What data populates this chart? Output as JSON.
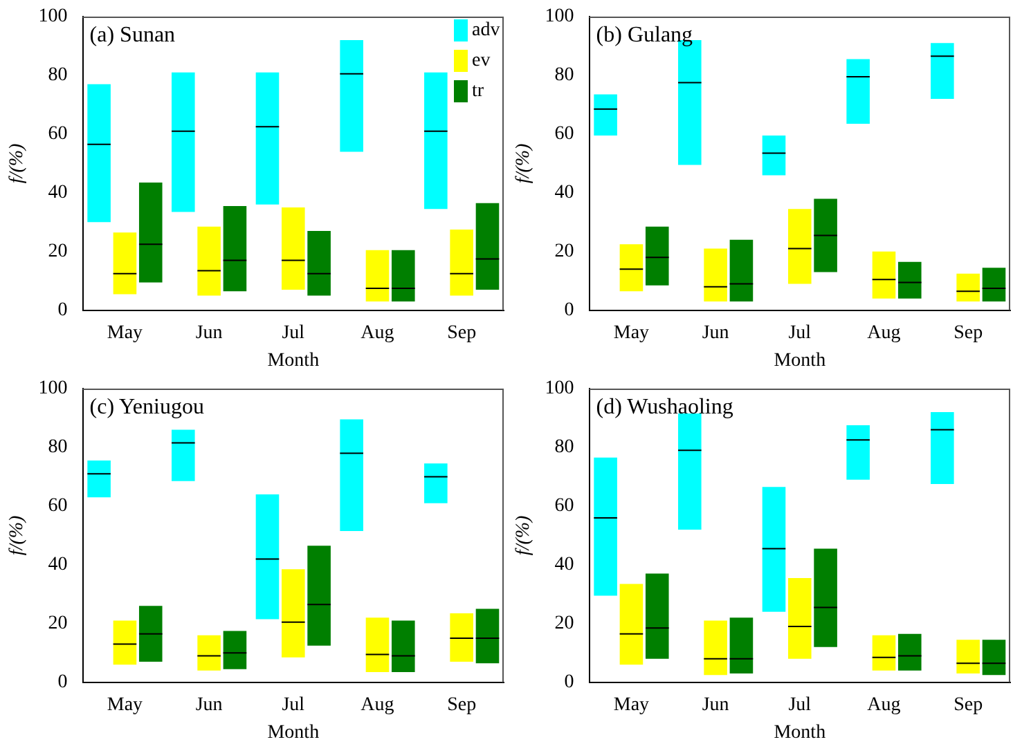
{
  "chart_data": [
    {
      "type": "box",
      "title": "(a) Sunan",
      "xlabel": "Month",
      "ylabel": "f/(%)",
      "categories": [
        "May",
        "Jun",
        "Jul",
        "Aug",
        "Sep"
      ],
      "ylim": [
        0,
        100
      ],
      "yticks": [
        0,
        20,
        40,
        60,
        80,
        100
      ],
      "legend": "top right",
      "series": [
        {
          "name": "adv",
          "color": "#00ffff",
          "boxes": [
            {
              "low": 30,
              "q1": 30,
              "median": 56.5,
              "q3": 77,
              "high": 77
            },
            {
              "low": 33.5,
              "q1": 33.5,
              "median": 61,
              "q3": 81,
              "high": 81
            },
            {
              "low": 36,
              "q1": 36,
              "median": 62.5,
              "q3": 81,
              "high": 81
            },
            {
              "low": 54,
              "q1": 54,
              "median": 80.5,
              "q3": 92,
              "high": 92
            },
            {
              "low": 34.5,
              "q1": 34.5,
              "median": 61,
              "q3": 81,
              "high": 81
            }
          ]
        },
        {
          "name": "ev",
          "color": "#ffff00",
          "boxes": [
            {
              "low": 5.5,
              "q1": 5.5,
              "median": 12.5,
              "q3": 26.5,
              "high": 26.5
            },
            {
              "low": 5,
              "q1": 5,
              "median": 13.5,
              "q3": 28.5,
              "high": 28.5
            },
            {
              "low": 7,
              "q1": 7,
              "median": 17,
              "q3": 35,
              "high": 35
            },
            {
              "low": 3,
              "q1": 3,
              "median": 7.5,
              "q3": 20.5,
              "high": 20.5
            },
            {
              "low": 5,
              "q1": 5,
              "median": 12.5,
              "q3": 27.5,
              "high": 27.5
            }
          ]
        },
        {
          "name": "tr",
          "color": "#007f00",
          "boxes": [
            {
              "low": 9.5,
              "q1": 9.5,
              "median": 22.5,
              "q3": 43.5,
              "high": 43.5
            },
            {
              "low": 6.5,
              "q1": 6.5,
              "median": 17,
              "q3": 35.5,
              "high": 35.5
            },
            {
              "low": 5,
              "q1": 5,
              "median": 12.5,
              "q3": 27,
              "high": 27
            },
            {
              "low": 3,
              "q1": 3,
              "median": 7.5,
              "q3": 20.5,
              "high": 20.5
            },
            {
              "low": 7,
              "q1": 7,
              "median": 17.5,
              "q3": 36.5,
              "high": 36.5
            }
          ]
        }
      ]
    },
    {
      "type": "box",
      "title": "(b) Gulang",
      "xlabel": "Month",
      "ylabel": "f/(%)",
      "categories": [
        "May",
        "Jun",
        "Jul",
        "Aug",
        "Sep"
      ],
      "ylim": [
        0,
        100
      ],
      "yticks": [
        0,
        20,
        40,
        60,
        80,
        100
      ],
      "series": [
        {
          "color": "#00ffff",
          "boxes": [
            {
              "low": 59.5,
              "q1": 59.5,
              "median": 68.5,
              "q3": 73.5,
              "high": 73.5
            },
            {
              "low": 49.5,
              "q1": 49.5,
              "median": 77.5,
              "q3": 92,
              "high": 92
            },
            {
              "low": 46,
              "q1": 46,
              "median": 53.5,
              "q3": 59.5,
              "high": 59.5
            },
            {
              "low": 63.5,
              "q1": 63.5,
              "median": 79.5,
              "q3": 85.5,
              "high": 85.5
            },
            {
              "low": 72,
              "q1": 72,
              "median": 86.5,
              "q3": 91,
              "high": 91
            }
          ]
        },
        {
          "color": "#ffff00",
          "boxes": [
            {
              "low": 6.5,
              "q1": 6.5,
              "median": 14,
              "q3": 22.5,
              "high": 22.5
            },
            {
              "low": 3,
              "q1": 3,
              "median": 8,
              "q3": 21,
              "high": 21
            },
            {
              "low": 9,
              "q1": 9,
              "median": 21,
              "q3": 34.5,
              "high": 34.5
            },
            {
              "low": 4,
              "q1": 4,
              "median": 10.5,
              "q3": 20,
              "high": 20
            },
            {
              "low": 3,
              "q1": 3,
              "median": 6.5,
              "q3": 12.5,
              "high": 12.5
            }
          ]
        },
        {
          "color": "#007f00",
          "boxes": [
            {
              "low": 8.5,
              "q1": 8.5,
              "median": 18,
              "q3": 28.5,
              "high": 28.5
            },
            {
              "low": 3,
              "q1": 3,
              "median": 9,
              "q3": 24,
              "high": 24
            },
            {
              "low": 13,
              "q1": 13,
              "median": 25.5,
              "q3": 38,
              "high": 38
            },
            {
              "low": 4,
              "q1": 4,
              "median": 9.5,
              "q3": 16.5,
              "high": 16.5
            },
            {
              "low": 3,
              "q1": 3,
              "median": 7.5,
              "q3": 14.5,
              "high": 14.5
            }
          ]
        }
      ]
    },
    {
      "type": "box",
      "title": "(c) Yeniugou",
      "xlabel": "Month",
      "ylabel": "f/(%)",
      "categories": [
        "May",
        "Jun",
        "Jul",
        "Aug",
        "Sep"
      ],
      "ylim": [
        0,
        100
      ],
      "yticks": [
        0,
        20,
        40,
        60,
        80,
        100
      ],
      "series": [
        {
          "color": "#00ffff",
          "boxes": [
            {
              "low": 63,
              "q1": 63,
              "median": 71,
              "q3": 75.5,
              "high": 75.5
            },
            {
              "low": 68.5,
              "q1": 68.5,
              "median": 81.5,
              "q3": 86,
              "high": 86
            },
            {
              "low": 21.5,
              "q1": 21.5,
              "median": 42,
              "q3": 64,
              "high": 64
            },
            {
              "low": 51.5,
              "q1": 51.5,
              "median": 78,
              "q3": 89.5,
              "high": 89.5
            },
            {
              "low": 61,
              "q1": 61,
              "median": 70,
              "q3": 74.5,
              "high": 74.5
            }
          ]
        },
        {
          "color": "#ffff00",
          "boxes": [
            {
              "low": 6,
              "q1": 6,
              "median": 13,
              "q3": 21,
              "high": 21
            },
            {
              "low": 4,
              "q1": 4,
              "median": 9,
              "q3": 16,
              "high": 16
            },
            {
              "low": 8.5,
              "q1": 8.5,
              "median": 20.5,
              "q3": 38.5,
              "high": 38.5
            },
            {
              "low": 3.5,
              "q1": 3.5,
              "median": 9.5,
              "q3": 22,
              "high": 22
            },
            {
              "low": 7,
              "q1": 7,
              "median": 15,
              "q3": 23.5,
              "high": 23.5
            }
          ]
        },
        {
          "color": "#007f00",
          "boxes": [
            {
              "low": 7,
              "q1": 7,
              "median": 16.5,
              "q3": 26,
              "high": 26
            },
            {
              "low": 4.5,
              "q1": 4.5,
              "median": 10,
              "q3": 17.5,
              "high": 17.5
            },
            {
              "low": 12.5,
              "q1": 12.5,
              "median": 26.5,
              "q3": 46.5,
              "high": 46.5
            },
            {
              "low": 3.5,
              "q1": 3.5,
              "median": 9,
              "q3": 21,
              "high": 21
            },
            {
              "low": 6.5,
              "q1": 6.5,
              "median": 15,
              "q3": 25,
              "high": 25
            }
          ]
        }
      ]
    },
    {
      "type": "box",
      "title": "(d) Wushaoling",
      "xlabel": "Month",
      "ylabel": "f/(%)",
      "categories": [
        "May",
        "Jun",
        "Jul",
        "Aug",
        "Sep"
      ],
      "ylim": [
        0,
        100
      ],
      "yticks": [
        0,
        20,
        40,
        60,
        80,
        100
      ],
      "series": [
        {
          "color": "#00ffff",
          "boxes": [
            {
              "low": 29.5,
              "q1": 29.5,
              "median": 56,
              "q3": 76.5,
              "high": 76.5
            },
            {
              "low": 52,
              "q1": 52,
              "median": 79,
              "q3": 91.5,
              "high": 91.5
            },
            {
              "low": 24,
              "q1": 24,
              "median": 45.5,
              "q3": 66.5,
              "high": 66.5
            },
            {
              "low": 69,
              "q1": 69,
              "median": 82.5,
              "q3": 87.5,
              "high": 87.5
            },
            {
              "low": 67.5,
              "q1": 67.5,
              "median": 86,
              "q3": 92,
              "high": 92
            }
          ]
        },
        {
          "color": "#ffff00",
          "boxes": [
            {
              "low": 6,
              "q1": 6,
              "median": 16.5,
              "q3": 33.5,
              "high": 33.5
            },
            {
              "low": 2.5,
              "q1": 2.5,
              "median": 8,
              "q3": 21,
              "high": 21
            },
            {
              "low": 8,
              "q1": 8,
              "median": 19,
              "q3": 35.5,
              "high": 35.5
            },
            {
              "low": 4,
              "q1": 4,
              "median": 8.5,
              "q3": 16,
              "high": 16
            },
            {
              "low": 3,
              "q1": 3,
              "median": 6.5,
              "q3": 14.5,
              "high": 14.5
            }
          ]
        },
        {
          "color": "#007f00",
          "boxes": [
            {
              "low": 8,
              "q1": 8,
              "median": 18.5,
              "q3": 37,
              "high": 37
            },
            {
              "low": 3,
              "q1": 3,
              "median": 8,
              "q3": 22,
              "high": 22
            },
            {
              "low": 12,
              "q1": 12,
              "median": 25.5,
              "q3": 45.5,
              "high": 45.5
            },
            {
              "low": 4,
              "q1": 4,
              "median": 9,
              "q3": 16.5,
              "high": 16.5
            },
            {
              "low": 2.5,
              "q1": 2.5,
              "median": 6.5,
              "q3": 14.5,
              "high": 14.5
            }
          ]
        }
      ]
    }
  ]
}
